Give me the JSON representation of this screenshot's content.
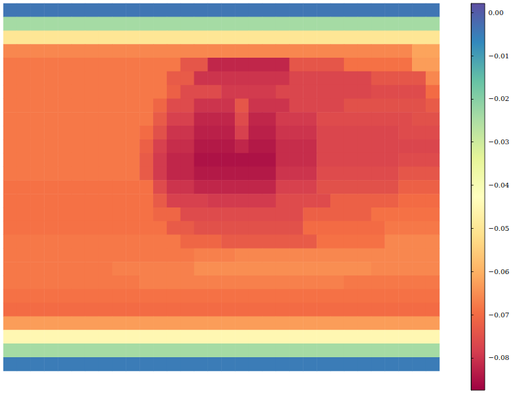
{
  "chart_data": {
    "type": "heatmap",
    "tick_labels": false,
    "cells": [
      [
        -0.004,
        -0.004,
        -0.004,
        -0.004,
        -0.004,
        -0.004,
        -0.004,
        -0.004,
        -0.004,
        -0.004,
        -0.004,
        -0.004,
        -0.004,
        -0.004,
        -0.004,
        -0.004,
        -0.004,
        -0.004,
        -0.004,
        -0.004,
        -0.004,
        -0.004,
        -0.004,
        -0.004,
        -0.004,
        -0.004,
        -0.004,
        -0.004,
        -0.004,
        -0.004,
        -0.004,
        -0.004
      ],
      [
        -0.024,
        -0.024,
        -0.024,
        -0.024,
        -0.024,
        -0.024,
        -0.024,
        -0.024,
        -0.024,
        -0.024,
        -0.024,
        -0.024,
        -0.024,
        -0.024,
        -0.024,
        -0.024,
        -0.024,
        -0.024,
        -0.024,
        -0.024,
        -0.024,
        -0.024,
        -0.024,
        -0.024,
        -0.024,
        -0.024,
        -0.024,
        -0.024,
        -0.024,
        -0.024,
        -0.024,
        -0.024
      ],
      [
        -0.05,
        -0.05,
        -0.05,
        -0.05,
        -0.05,
        -0.05,
        -0.05,
        -0.05,
        -0.05,
        -0.05,
        -0.05,
        -0.05,
        -0.05,
        -0.05,
        -0.05,
        -0.05,
        -0.05,
        -0.05,
        -0.05,
        -0.05,
        -0.05,
        -0.05,
        -0.05,
        -0.05,
        -0.05,
        -0.05,
        -0.05,
        -0.05,
        -0.05,
        -0.05,
        -0.05,
        -0.05
      ],
      [
        -0.066,
        -0.066,
        -0.066,
        -0.066,
        -0.066,
        -0.066,
        -0.066,
        -0.066,
        -0.066,
        -0.066,
        -0.066,
        -0.066,
        -0.066,
        -0.066,
        -0.066,
        -0.066,
        -0.066,
        -0.066,
        -0.066,
        -0.066,
        -0.066,
        -0.066,
        -0.066,
        -0.066,
        -0.066,
        -0.066,
        -0.066,
        -0.066,
        -0.066,
        -0.066,
        -0.062,
        -0.062
      ],
      [
        -0.068,
        -0.068,
        -0.068,
        -0.068,
        -0.068,
        -0.068,
        -0.068,
        -0.068,
        -0.068,
        -0.068,
        -0.068,
        -0.068,
        -0.068,
        -0.074,
        -0.074,
        -0.082,
        -0.082,
        -0.082,
        -0.082,
        -0.082,
        -0.082,
        -0.074,
        -0.074,
        -0.074,
        -0.074,
        -0.069,
        -0.069,
        -0.069,
        -0.069,
        -0.069,
        -0.063,
        -0.063
      ],
      [
        -0.068,
        -0.068,
        -0.068,
        -0.068,
        -0.068,
        -0.068,
        -0.068,
        -0.068,
        -0.068,
        -0.068,
        -0.068,
        -0.068,
        -0.073,
        -0.073,
        -0.08,
        -0.08,
        -0.08,
        -0.08,
        -0.08,
        -0.08,
        -0.08,
        -0.077,
        -0.077,
        -0.077,
        -0.077,
        -0.077,
        -0.077,
        -0.074,
        -0.074,
        -0.074,
        -0.074,
        -0.066
      ],
      [
        -0.068,
        -0.068,
        -0.068,
        -0.068,
        -0.068,
        -0.068,
        -0.068,
        -0.068,
        -0.068,
        -0.068,
        -0.068,
        -0.068,
        -0.072,
        -0.076,
        -0.076,
        -0.076,
        -0.079,
        -0.079,
        -0.079,
        -0.079,
        -0.077,
        -0.077,
        -0.077,
        -0.077,
        -0.077,
        -0.077,
        -0.077,
        -0.076,
        -0.076,
        -0.076,
        -0.076,
        -0.07
      ],
      [
        -0.068,
        -0.068,
        -0.068,
        -0.068,
        -0.068,
        -0.068,
        -0.068,
        -0.068,
        -0.068,
        -0.068,
        -0.068,
        -0.071,
        -0.076,
        -0.076,
        -0.08,
        -0.08,
        -0.08,
        -0.074,
        -0.08,
        -0.08,
        -0.08,
        -0.077,
        -0.077,
        -0.077,
        -0.077,
        -0.075,
        -0.075,
        -0.075,
        -0.075,
        -0.075,
        -0.075,
        -0.073
      ],
      [
        -0.068,
        -0.068,
        -0.068,
        -0.068,
        -0.068,
        -0.068,
        -0.068,
        -0.068,
        -0.068,
        -0.068,
        -0.068,
        -0.073,
        -0.078,
        -0.078,
        -0.082,
        -0.082,
        -0.082,
        -0.076,
        -0.082,
        -0.082,
        -0.079,
        -0.079,
        -0.079,
        -0.076,
        -0.076,
        -0.076,
        -0.076,
        -0.076,
        -0.076,
        -0.076,
        -0.075,
        -0.075
      ],
      [
        -0.068,
        -0.068,
        -0.068,
        -0.068,
        -0.068,
        -0.068,
        -0.068,
        -0.068,
        -0.068,
        -0.068,
        -0.07,
        -0.075,
        -0.08,
        -0.08,
        -0.083,
        -0.083,
        -0.083,
        -0.078,
        -0.083,
        -0.083,
        -0.08,
        -0.08,
        -0.08,
        -0.077,
        -0.077,
        -0.077,
        -0.077,
        -0.077,
        -0.077,
        -0.076,
        -0.076,
        -0.076
      ],
      [
        -0.068,
        -0.068,
        -0.068,
        -0.068,
        -0.068,
        -0.068,
        -0.068,
        -0.068,
        -0.068,
        -0.068,
        -0.072,
        -0.078,
        -0.081,
        -0.081,
        -0.084,
        -0.084,
        -0.084,
        -0.082,
        -0.084,
        -0.084,
        -0.081,
        -0.081,
        -0.081,
        -0.077,
        -0.077,
        -0.077,
        -0.077,
        -0.077,
        -0.077,
        -0.077,
        -0.077,
        -0.077
      ],
      [
        -0.068,
        -0.068,
        -0.068,
        -0.068,
        -0.068,
        -0.068,
        -0.068,
        -0.068,
        -0.068,
        -0.068,
        -0.073,
        -0.079,
        -0.082,
        -0.082,
        -0.085,
        -0.085,
        -0.085,
        -0.085,
        -0.085,
        -0.085,
        -0.081,
        -0.081,
        -0.081,
        -0.077,
        -0.077,
        -0.077,
        -0.077,
        -0.077,
        -0.077,
        -0.076,
        -0.076,
        -0.076
      ],
      [
        -0.068,
        -0.068,
        -0.068,
        -0.068,
        -0.068,
        -0.068,
        -0.068,
        -0.068,
        -0.068,
        -0.068,
        -0.073,
        -0.079,
        -0.082,
        -0.082,
        -0.084,
        -0.084,
        -0.084,
        -0.084,
        -0.084,
        -0.084,
        -0.08,
        -0.08,
        -0.08,
        -0.076,
        -0.076,
        -0.076,
        -0.076,
        -0.076,
        -0.076,
        -0.074,
        -0.074,
        -0.074
      ],
      [
        -0.069,
        -0.069,
        -0.069,
        -0.069,
        -0.069,
        -0.069,
        -0.069,
        -0.069,
        -0.069,
        -0.069,
        -0.069,
        -0.076,
        -0.08,
        -0.08,
        -0.082,
        -0.082,
        -0.082,
        -0.082,
        -0.082,
        -0.082,
        -0.078,
        -0.078,
        -0.078,
        -0.075,
        -0.075,
        -0.075,
        -0.075,
        -0.075,
        -0.075,
        -0.072,
        -0.072,
        -0.072
      ],
      [
        -0.069,
        -0.069,
        -0.069,
        -0.069,
        -0.069,
        -0.069,
        -0.069,
        -0.069,
        -0.069,
        -0.069,
        -0.069,
        -0.073,
        -0.078,
        -0.078,
        -0.078,
        -0.079,
        -0.079,
        -0.079,
        -0.079,
        -0.079,
        -0.076,
        -0.076,
        -0.076,
        -0.076,
        -0.072,
        -0.072,
        -0.072,
        -0.072,
        -0.072,
        -0.07,
        -0.07,
        -0.07
      ],
      [
        -0.069,
        -0.069,
        -0.069,
        -0.069,
        -0.069,
        -0.069,
        -0.069,
        -0.069,
        -0.069,
        -0.069,
        -0.069,
        -0.071,
        -0.071,
        -0.076,
        -0.076,
        -0.076,
        -0.076,
        -0.076,
        -0.076,
        -0.076,
        -0.076,
        -0.076,
        -0.072,
        -0.072,
        -0.072,
        -0.072,
        -0.072,
        -0.069,
        -0.069,
        -0.069,
        -0.069,
        -0.069
      ],
      [
        -0.069,
        -0.069,
        -0.069,
        -0.069,
        -0.069,
        -0.069,
        -0.069,
        -0.069,
        -0.069,
        -0.069,
        -0.069,
        -0.069,
        -0.073,
        -0.073,
        -0.075,
        -0.075,
        -0.075,
        -0.075,
        -0.075,
        -0.075,
        -0.075,
        -0.075,
        -0.07,
        -0.07,
        -0.07,
        -0.07,
        -0.07,
        -0.07,
        -0.068,
        -0.068,
        -0.068,
        -0.068
      ],
      [
        -0.068,
        -0.068,
        -0.068,
        -0.068,
        -0.068,
        -0.068,
        -0.068,
        -0.068,
        -0.068,
        -0.068,
        -0.068,
        -0.068,
        -0.068,
        -0.071,
        -0.071,
        -0.071,
        -0.073,
        -0.073,
        -0.073,
        -0.073,
        -0.073,
        -0.073,
        -0.073,
        -0.069,
        -0.069,
        -0.069,
        -0.069,
        -0.069,
        -0.066,
        -0.066,
        -0.066,
        -0.066
      ],
      [
        -0.068,
        -0.068,
        -0.068,
        -0.068,
        -0.068,
        -0.068,
        -0.068,
        -0.068,
        -0.068,
        -0.068,
        -0.068,
        -0.068,
        -0.068,
        -0.068,
        -0.067,
        -0.067,
        -0.067,
        -0.066,
        -0.066,
        -0.066,
        -0.066,
        -0.066,
        -0.066,
        -0.066,
        -0.066,
        -0.066,
        -0.066,
        -0.066,
        -0.066,
        -0.066,
        -0.066,
        -0.066
      ],
      [
        -0.068,
        -0.068,
        -0.068,
        -0.068,
        -0.068,
        -0.068,
        -0.068,
        -0.068,
        -0.067,
        -0.067,
        -0.067,
        -0.067,
        -0.067,
        -0.067,
        -0.065,
        -0.065,
        -0.065,
        -0.065,
        -0.065,
        -0.065,
        -0.065,
        -0.065,
        -0.065,
        -0.065,
        -0.065,
        -0.065,
        -0.065,
        -0.066,
        -0.066,
        -0.066,
        -0.066,
        -0.066
      ],
      [
        -0.068,
        -0.068,
        -0.068,
        -0.068,
        -0.068,
        -0.068,
        -0.068,
        -0.068,
        -0.068,
        -0.068,
        -0.067,
        -0.067,
        -0.067,
        -0.067,
        -0.067,
        -0.067,
        -0.067,
        -0.067,
        -0.067,
        -0.067,
        -0.067,
        -0.067,
        -0.067,
        -0.067,
        -0.067,
        -0.068,
        -0.068,
        -0.068,
        -0.068,
        -0.068,
        -0.068,
        -0.068
      ],
      [
        -0.069,
        -0.069,
        -0.069,
        -0.069,
        -0.069,
        -0.069,
        -0.069,
        -0.069,
        -0.069,
        -0.069,
        -0.069,
        -0.069,
        -0.069,
        -0.069,
        -0.069,
        -0.069,
        -0.069,
        -0.069,
        -0.069,
        -0.069,
        -0.069,
        -0.069,
        -0.069,
        -0.069,
        -0.069,
        -0.069,
        -0.069,
        -0.069,
        -0.069,
        -0.069,
        -0.069,
        -0.069
      ],
      [
        -0.07,
        -0.07,
        -0.07,
        -0.07,
        -0.07,
        -0.07,
        -0.07,
        -0.07,
        -0.07,
        -0.07,
        -0.07,
        -0.07,
        -0.07,
        -0.07,
        -0.07,
        -0.07,
        -0.07,
        -0.07,
        -0.07,
        -0.07,
        -0.07,
        -0.07,
        -0.07,
        -0.07,
        -0.07,
        -0.07,
        -0.07,
        -0.07,
        -0.07,
        -0.07,
        -0.07,
        -0.07
      ],
      [
        -0.063,
        -0.063,
        -0.063,
        -0.063,
        -0.063,
        -0.063,
        -0.063,
        -0.063,
        -0.063,
        -0.063,
        -0.063,
        -0.063,
        -0.063,
        -0.063,
        -0.063,
        -0.063,
        -0.063,
        -0.063,
        -0.063,
        -0.063,
        -0.063,
        -0.063,
        -0.063,
        -0.063,
        -0.063,
        -0.063,
        -0.063,
        -0.063,
        -0.063,
        -0.063,
        -0.063,
        -0.063
      ],
      [
        -0.045,
        -0.045,
        -0.045,
        -0.045,
        -0.045,
        -0.045,
        -0.045,
        -0.045,
        -0.045,
        -0.045,
        -0.045,
        -0.045,
        -0.045,
        -0.045,
        -0.045,
        -0.045,
        -0.045,
        -0.045,
        -0.045,
        -0.045,
        -0.045,
        -0.045,
        -0.045,
        -0.045,
        -0.045,
        -0.045,
        -0.045,
        -0.045,
        -0.045,
        -0.045,
        -0.045,
        -0.045
      ],
      [
        -0.024,
        -0.024,
        -0.024,
        -0.024,
        -0.024,
        -0.024,
        -0.024,
        -0.024,
        -0.024,
        -0.024,
        -0.024,
        -0.024,
        -0.024,
        -0.024,
        -0.024,
        -0.024,
        -0.024,
        -0.024,
        -0.024,
        -0.024,
        -0.024,
        -0.024,
        -0.024,
        -0.024,
        -0.024,
        -0.024,
        -0.024,
        -0.024,
        -0.024,
        -0.024,
        -0.024,
        -0.024
      ],
      [
        -0.005,
        -0.005,
        -0.005,
        -0.005,
        -0.005,
        -0.005,
        -0.005,
        -0.005,
        -0.005,
        -0.005,
        -0.005,
        -0.005,
        -0.005,
        -0.005,
        -0.005,
        -0.005,
        -0.005,
        -0.005,
        -0.005,
        -0.005,
        -0.005,
        -0.005,
        -0.005,
        -0.005,
        -0.005,
        -0.005,
        -0.005,
        -0.005,
        -0.005,
        -0.005,
        -0.005,
        -0.005
      ]
    ],
    "colorbar_range": [
      -0.0875,
      0.0021
    ],
    "colorbar_ticks": [
      {
        "value": 0,
        "label": "0.00"
      },
      {
        "value": -0.01,
        "label": "−0.01"
      },
      {
        "value": -0.02,
        "label": "−0.02"
      },
      {
        "value": -0.03,
        "label": "−0.03"
      },
      {
        "value": -0.04,
        "label": "−0.04"
      },
      {
        "value": -0.05,
        "label": "−0.05"
      },
      {
        "value": -0.06,
        "label": "−0.06"
      },
      {
        "value": -0.07,
        "label": "−0.07"
      },
      {
        "value": -0.08,
        "label": "−0.08"
      }
    ]
  }
}
